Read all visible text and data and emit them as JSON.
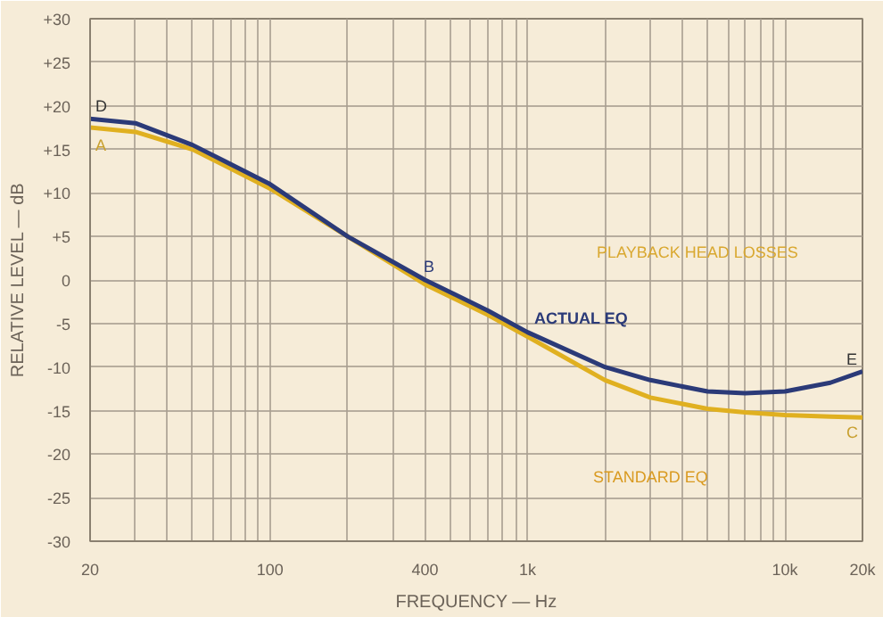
{
  "chart_data": {
    "type": "line",
    "xlabel": "FREQUENCY — Hz",
    "ylabel": "RELATIVE LEVEL — dB",
    "log": "x",
    "grid": true,
    "marker": "none",
    "line_style": "solid",
    "xlim": [
      20,
      20000
    ],
    "xticks": [
      20,
      {
        "value": 30,
        "label": null
      },
      {
        "value": 40,
        "label": null
      },
      {
        "value": 50,
        "label": null
      },
      {
        "value": 60,
        "label": null
      },
      {
        "value": 70,
        "label": null
      },
      {
        "value": 80,
        "label": null
      },
      {
        "value": 90,
        "label": null
      },
      100,
      {
        "value": 200,
        "label": null
      },
      {
        "value": 300,
        "label": null
      },
      400,
      {
        "value": 500,
        "label": null
      },
      {
        "value": 600,
        "label": null
      },
      {
        "value": 700,
        "label": null
      },
      {
        "value": 800,
        "label": null
      },
      {
        "value": 900,
        "label": null
      },
      {
        "value": 1000,
        "label": "1k"
      },
      {
        "value": 2000,
        "label": null
      },
      {
        "value": 3000,
        "label": null
      },
      {
        "value": 4000,
        "label": null
      },
      {
        "value": 5000,
        "label": null
      },
      {
        "value": 6000,
        "label": null
      },
      {
        "value": 7000,
        "label": null
      },
      {
        "value": 8000,
        "label": null
      },
      {
        "value": 9000,
        "label": null
      },
      {
        "value": 10000,
        "label": "10k"
      },
      {
        "value": 20000,
        "label": "20k"
      }
    ],
    "ylim": [
      -30,
      30
    ],
    "yticks": [
      {
        "value": -30,
        "label": "-30"
      },
      {
        "value": -25,
        "label": "-25"
      },
      {
        "value": -20,
        "label": "-20"
      },
      {
        "value": -15,
        "label": "-15"
      },
      {
        "value": -10,
        "label": "-10"
      },
      {
        "value": -5,
        "label": "-5"
      },
      0,
      {
        "value": 5,
        "label": "+5"
      },
      {
        "value": 10,
        "label": "+10"
      },
      {
        "value": 15,
        "label": "+15"
      },
      {
        "value": 20,
        "label": "+20"
      },
      {
        "value": 25,
        "label": "+25"
      },
      {
        "value": 30,
        "label": "+30"
      }
    ],
    "x": [
      20,
      30,
      50,
      100,
      200,
      400,
      700,
      1000,
      2000,
      3000,
      5000,
      7000,
      10000,
      15000,
      20000
    ],
    "series": [
      {
        "color": "#e0b020",
        "values": [
          17.5,
          17,
          15,
          10.5,
          5,
          -0.5,
          -4,
          -6.5,
          -11.5,
          -13.5,
          -14.8,
          -15.2,
          -15.5,
          -15.7,
          -15.8
        ]
      },
      {
        "color": "#2b3a78",
        "values": [
          18.5,
          18,
          15.5,
          11,
          5,
          0,
          -3.5,
          -6,
          -10,
          -11.5,
          -12.8,
          -13,
          -12.8,
          -11.8,
          -10.5
        ]
      }
    ],
    "annotations": [
      "D",
      "A",
      "B",
      "E",
      "C",
      "ACTUAL EQ",
      "STANDARD EQ",
      "PLAYBACK HEAD LOSSES"
    ]
  }
}
